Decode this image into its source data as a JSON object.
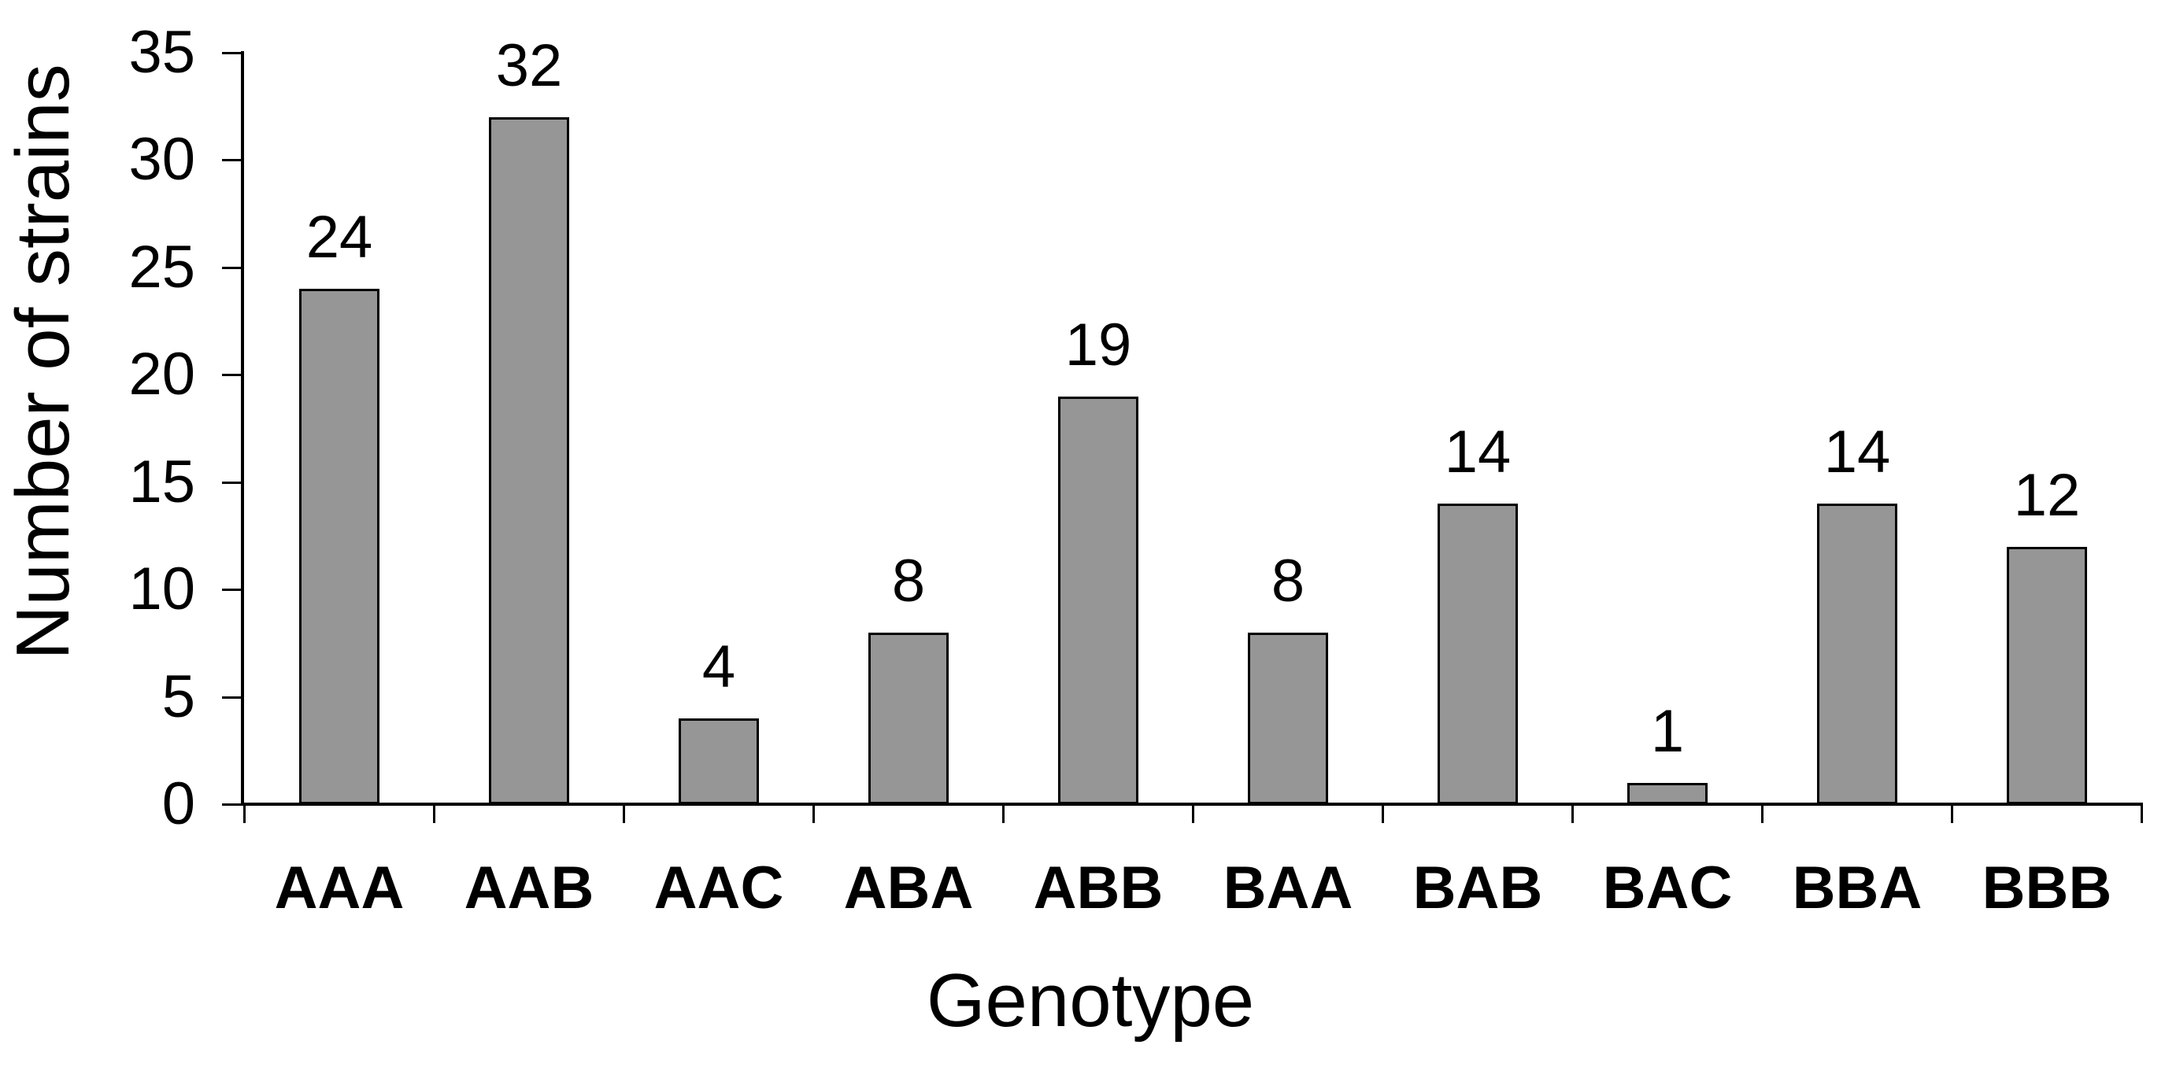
{
  "chart_data": {
    "type": "bar",
    "title": "",
    "xlabel": "Genotype",
    "ylabel": "Number of strains",
    "categories": [
      "AAA",
      "AAB",
      "AAC",
      "ABA",
      "ABB",
      "BAA",
      "BAB",
      "BAC",
      "BBA",
      "BBB"
    ],
    "values": [
      24,
      32,
      4,
      8,
      19,
      8,
      14,
      1,
      14,
      12
    ],
    "value_labels": [
      "24",
      "32",
      "4",
      "8",
      "19",
      "8",
      "14",
      "1",
      "14",
      "12"
    ],
    "ylim": [
      0,
      35
    ],
    "ytick_step": 5,
    "ytick_labels": [
      "0",
      "5",
      "10",
      "15",
      "20",
      "25",
      "30",
      "35"
    ],
    "grid": "off",
    "legend": "none",
    "colors": {
      "bar_fill": "#969696",
      "bar_border": "#000000",
      "axis": "#000000",
      "text": "#000000",
      "background": "#ffffff"
    }
  }
}
